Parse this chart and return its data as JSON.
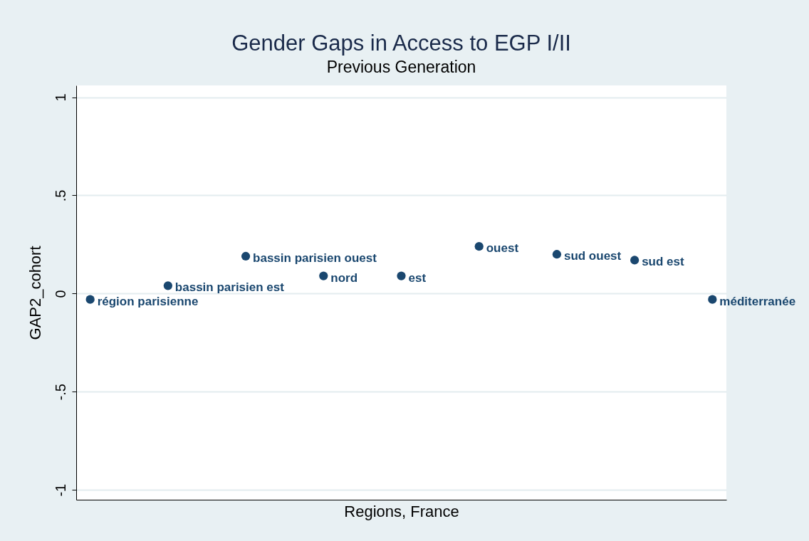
{
  "chart_data": {
    "type": "scatter",
    "title": "Gender Gaps in Access to EGP I/II",
    "subtitle": "Previous Generation",
    "xlabel": "Regions, France",
    "ylabel": "GAP2_cohort",
    "categories": [
      null,
      null,
      null,
      null,
      null,
      null,
      null,
      null,
      null
    ],
    "series": [
      {
        "name": "région parisienne",
        "color": "#1a476f",
        "values": [
          -0.03,
          null,
          null,
          null,
          null,
          null,
          null,
          null,
          null
        ]
      },
      {
        "name": "bassin parisien est",
        "color": "#1a476f",
        "values": [
          null,
          0.04,
          null,
          null,
          null,
          null,
          null,
          null,
          null
        ]
      },
      {
        "name": "bassin parisien ouest",
        "color": "#1a476f",
        "values": [
          null,
          null,
          0.19,
          null,
          null,
          null,
          null,
          null,
          null
        ]
      },
      {
        "name": "nord",
        "color": "#1a476f",
        "values": [
          null,
          null,
          null,
          0.09,
          null,
          null,
          null,
          null,
          null
        ]
      },
      {
        "name": "est",
        "color": "#1a476f",
        "values": [
          null,
          null,
          null,
          null,
          0.09,
          null,
          null,
          null,
          null
        ]
      },
      {
        "name": "ouest",
        "color": "#1a476f",
        "values": [
          null,
          null,
          null,
          null,
          null,
          0.24,
          null,
          null,
          null
        ]
      },
      {
        "name": "sud ouest",
        "color": "#1a476f",
        "values": [
          null,
          null,
          null,
          null,
          null,
          null,
          0.2,
          null,
          null
        ]
      },
      {
        "name": "sud est",
        "color": "#1a476f",
        "values": [
          null,
          null,
          null,
          null,
          null,
          null,
          null,
          0.17,
          null
        ]
      },
      {
        "name": "méditerranée",
        "color": "#1a476f",
        "values": [
          null,
          null,
          null,
          null,
          null,
          null,
          null,
          null,
          -0.03
        ]
      }
    ],
    "marker": "circle",
    "grid": "y",
    "tick_labels": "y",
    "ylim": [
      -1.05,
      1.06
    ],
    "yticks": [
      -1,
      {
        "value": -0.5,
        "label": "-.5"
      },
      0,
      {
        "value": 0.5,
        "label": ".5"
      },
      1
    ]
  }
}
